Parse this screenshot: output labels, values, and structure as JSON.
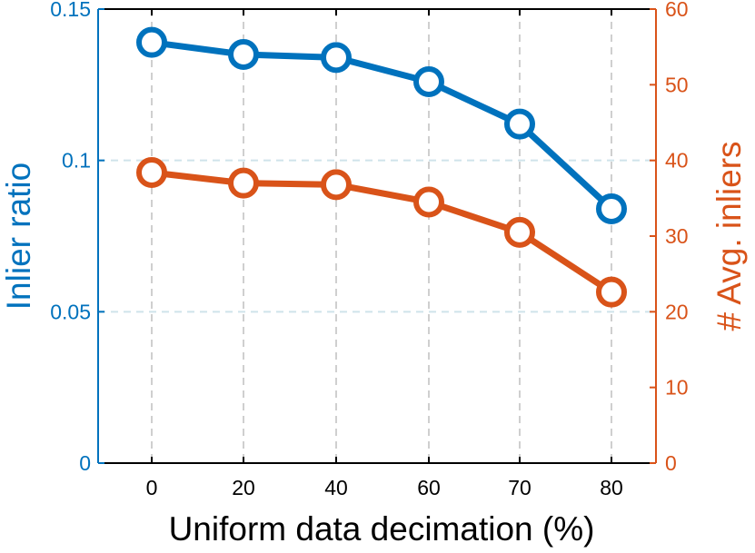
{
  "chart_data": {
    "type": "line",
    "categories": [
      "0",
      "20",
      "40",
      "60",
      "70",
      "80"
    ],
    "xlabel": "Uniform data decimation (%)",
    "y_left": {
      "label": "Inlier ratio",
      "ticks": [
        "0",
        "0.05",
        "0.1",
        "0.15"
      ],
      "tick_values": [
        0,
        0.05,
        0.1,
        0.15
      ],
      "lim": [
        0,
        0.15
      ],
      "color": "#0072BD"
    },
    "y_right": {
      "label": "# Avg. inliers",
      "ticks": [
        "0",
        "10",
        "20",
        "30",
        "40",
        "50",
        "60"
      ],
      "tick_values": [
        0,
        10,
        20,
        30,
        40,
        50,
        60
      ],
      "lim": [
        0,
        60
      ],
      "color": "#D95319"
    },
    "series": [
      {
        "axis": "left",
        "color": "#0072BD",
        "values": [
          0.139,
          0.135,
          0.134,
          0.126,
          0.112,
          0.084
        ]
      },
      {
        "axis": "right",
        "color": "#D95319",
        "values": [
          38.4,
          37.0,
          36.8,
          34.5,
          30.5,
          22.6
        ]
      }
    ],
    "grid": true,
    "marker": "open-circle"
  }
}
